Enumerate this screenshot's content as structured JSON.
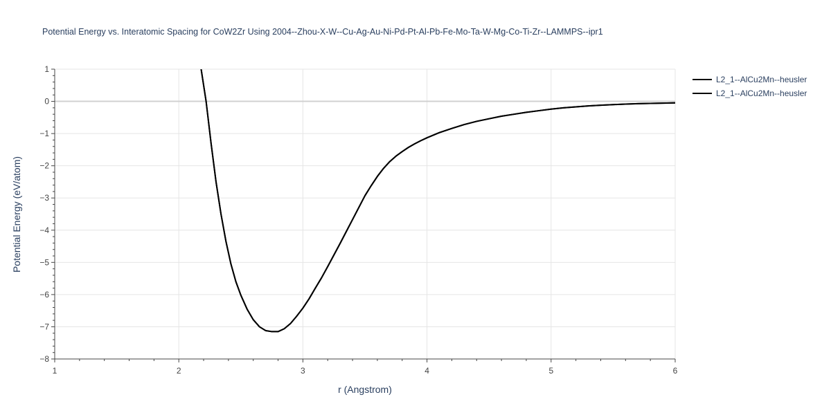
{
  "chart_data": {
    "type": "line",
    "title": "Potential Energy vs. Interatomic Spacing for CoW2Zr Using 2004--Zhou-X-W--Cu-Ag-Au-Ni-Pd-Pt-Al-Pb-Fe-Mo-Ta-W-Mg-Co-Ti-Zr--LAMMPS--ipr1",
    "xlabel": "r (Angstrom)",
    "ylabel": "Potential Energy (eV/atom)",
    "xlim": [
      1,
      6
    ],
    "ylim": [
      -8,
      1
    ],
    "xticks": [
      1,
      2,
      3,
      4,
      5,
      6
    ],
    "xtick_labels": [
      "1",
      "2",
      "3",
      "4",
      "5",
      "6"
    ],
    "yticks": [
      1,
      0,
      -1,
      -2,
      -3,
      -4,
      -5,
      -6,
      -7,
      -8
    ],
    "ytick_labels": [
      "1",
      "0",
      "−1",
      "−2",
      "−3",
      "−4",
      "−5",
      "−6",
      "−7",
      "−8"
    ],
    "grid": true,
    "zero_line": true,
    "legend_position": "top-right",
    "colors": {
      "series": "#000000",
      "grid": "#e5e5e5",
      "zeroline": "#d0d0d0",
      "axis": "#444444",
      "text": "#2a3f5f",
      "tick_text": "#444444"
    },
    "series": [
      {
        "name": "L2_1--AlCu2Mn--heusler",
        "x": [
          2.18,
          2.22,
          2.26,
          2.3,
          2.34,
          2.38,
          2.42,
          2.46,
          2.5,
          2.55,
          2.6,
          2.65,
          2.7,
          2.75,
          2.8,
          2.85,
          2.9,
          2.95,
          3.0,
          3.05,
          3.1,
          3.15,
          3.2,
          3.25,
          3.3,
          3.35,
          3.4,
          3.45,
          3.5,
          3.55,
          3.6,
          3.65,
          3.7,
          3.75,
          3.8,
          3.85,
          3.9,
          3.95,
          4.0,
          4.1,
          4.2,
          4.3,
          4.4,
          4.5,
          4.6,
          4.7,
          4.8,
          4.9,
          5.0,
          5.1,
          5.2,
          5.3,
          5.4,
          5.5,
          5.6,
          5.7,
          5.8,
          5.9,
          6.0
        ],
        "y": [
          1.0,
          0.0,
          -1.3,
          -2.5,
          -3.5,
          -4.35,
          -5.05,
          -5.6,
          -6.02,
          -6.45,
          -6.78,
          -7.0,
          -7.12,
          -7.15,
          -7.15,
          -7.06,
          -6.9,
          -6.67,
          -6.42,
          -6.13,
          -5.8,
          -5.48,
          -5.13,
          -4.77,
          -4.41,
          -4.04,
          -3.67,
          -3.3,
          -2.93,
          -2.62,
          -2.33,
          -2.08,
          -1.87,
          -1.7,
          -1.56,
          -1.43,
          -1.32,
          -1.22,
          -1.13,
          -0.97,
          -0.84,
          -0.72,
          -0.62,
          -0.54,
          -0.46,
          -0.4,
          -0.34,
          -0.29,
          -0.24,
          -0.2,
          -0.17,
          -0.14,
          -0.12,
          -0.1,
          -0.085,
          -0.072,
          -0.062,
          -0.054,
          -0.048
        ]
      },
      {
        "name": "L2_1--AlCu2Mn--heusler",
        "x": [
          2.18,
          2.22,
          2.26,
          2.3,
          2.34,
          2.38,
          2.42,
          2.46,
          2.5,
          2.55,
          2.6,
          2.65,
          2.7,
          2.75,
          2.8,
          2.85,
          2.9,
          2.95,
          3.0,
          3.05,
          3.1,
          3.15,
          3.2,
          3.25,
          3.3,
          3.35,
          3.4,
          3.45,
          3.5,
          3.55,
          3.6,
          3.65,
          3.7,
          3.75,
          3.8,
          3.85,
          3.9,
          3.95,
          4.0,
          4.1,
          4.2,
          4.3,
          4.4,
          4.5,
          4.6,
          4.7,
          4.8,
          4.9,
          5.0,
          5.1,
          5.2,
          5.3,
          5.4,
          5.5,
          5.6,
          5.7,
          5.8,
          5.9,
          6.0
        ],
        "y": [
          1.0,
          0.0,
          -1.3,
          -2.5,
          -3.5,
          -4.35,
          -5.05,
          -5.6,
          -6.02,
          -6.45,
          -6.78,
          -7.0,
          -7.12,
          -7.15,
          -7.15,
          -7.06,
          -6.9,
          -6.67,
          -6.42,
          -6.13,
          -5.8,
          -5.48,
          -5.13,
          -4.77,
          -4.41,
          -4.04,
          -3.67,
          -3.3,
          -2.93,
          -2.62,
          -2.33,
          -2.08,
          -1.87,
          -1.7,
          -1.56,
          -1.43,
          -1.32,
          -1.22,
          -1.13,
          -0.97,
          -0.84,
          -0.72,
          -0.62,
          -0.54,
          -0.46,
          -0.4,
          -0.34,
          -0.29,
          -0.24,
          -0.2,
          -0.17,
          -0.14,
          -0.12,
          -0.1,
          -0.085,
          -0.072,
          -0.062,
          -0.054,
          -0.048
        ]
      }
    ]
  }
}
